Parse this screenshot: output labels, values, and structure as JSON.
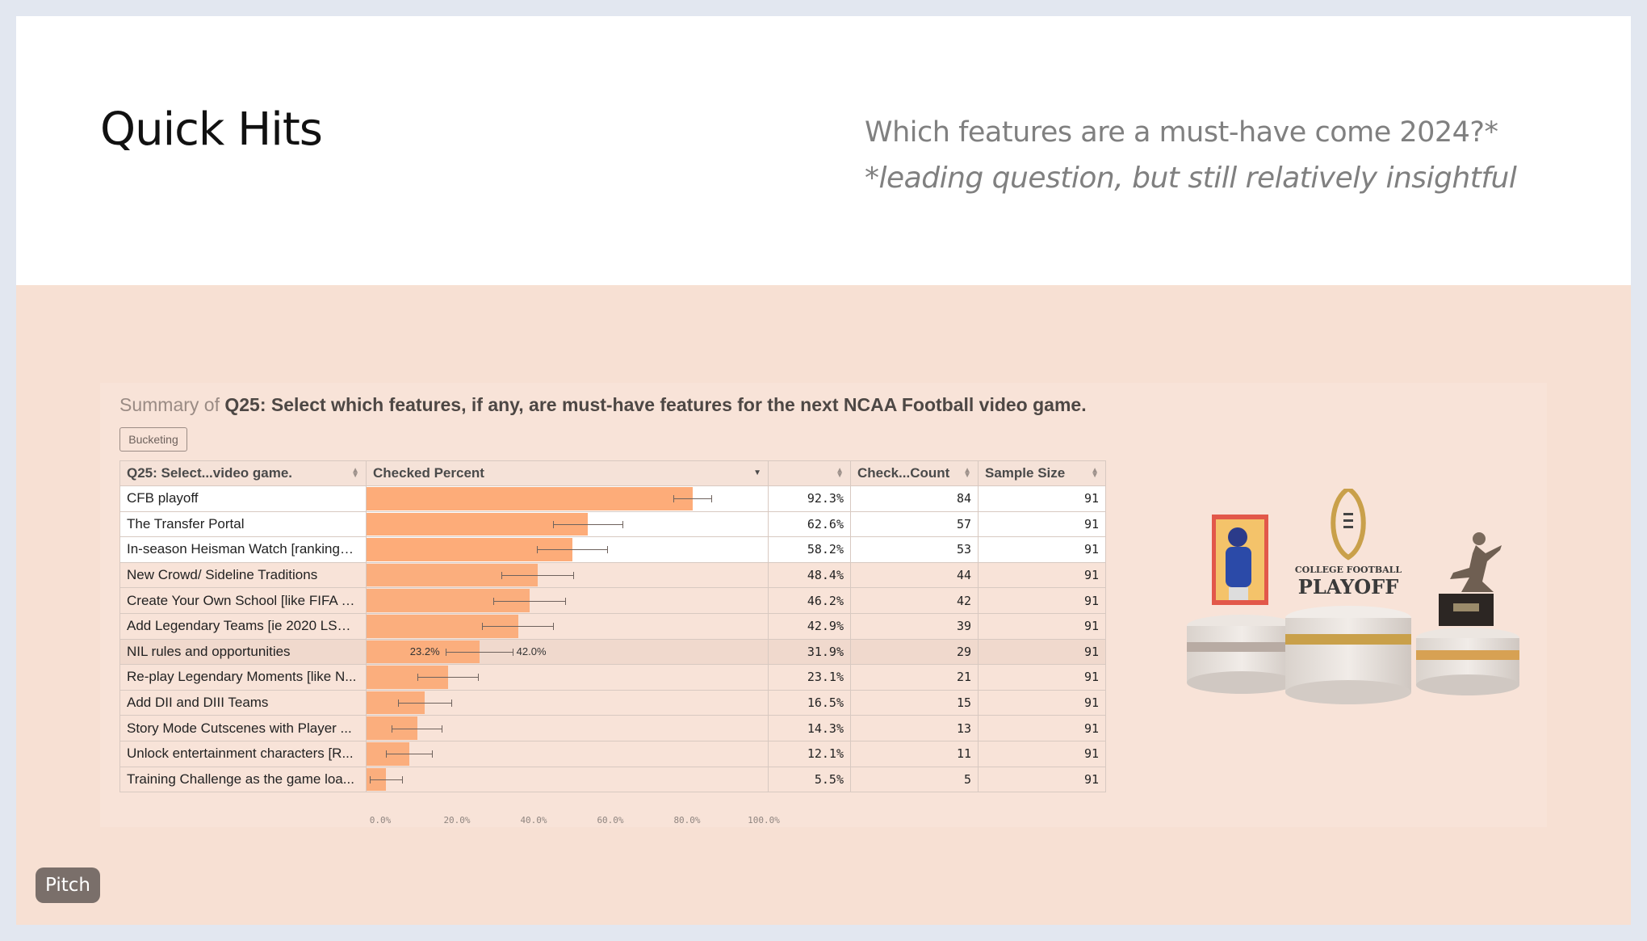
{
  "slide": {
    "title": "Quick Hits",
    "subtitle": "Which features are a must-have come 2024?*",
    "subnote": "*leading question, but still relatively insightful"
  },
  "panel": {
    "summary_prefix": "Summary of",
    "question": "Q25: Select which features, if any, are must-have features for the next NCAA Football video game.",
    "bucketing_label": "Bucketing",
    "columns": [
      "Q25: Select...video game.",
      "Checked Percent",
      "",
      "Check...Count",
      "Sample Size"
    ],
    "rows": [
      {
        "label": "CFB playoff",
        "pct": 92.3,
        "pct_text": "92.3%",
        "count": "84",
        "sample": "91"
      },
      {
        "label": "The Transfer Portal",
        "pct": 62.6,
        "pct_text": "62.6%",
        "count": "57",
        "sample": "91"
      },
      {
        "label": "In-season Heisman Watch [rankings,...",
        "pct": 58.2,
        "pct_text": "58.2%",
        "count": "53",
        "sample": "91"
      },
      {
        "label": "New Crowd/ Sideline Traditions",
        "pct": 48.4,
        "pct_text": "48.4%",
        "count": "44",
        "sample": "91"
      },
      {
        "label": "Create Your Own School [like FIFA U...",
        "pct": 46.2,
        "pct_text": "46.2%",
        "count": "42",
        "sample": "91"
      },
      {
        "label": "Add Legendary Teams [ie 2020 LSU ...",
        "pct": 42.9,
        "pct_text": "42.9%",
        "count": "39",
        "sample": "91"
      },
      {
        "label": "NIL rules and opportunities",
        "pct": 31.9,
        "pct_text": "31.9%",
        "count": "29",
        "sample": "91",
        "ci_low": "23.2%",
        "ci_high": "42.0%"
      },
      {
        "label": "Re-play Legendary Moments [like N...",
        "pct": 23.1,
        "pct_text": "23.1%",
        "count": "21",
        "sample": "91"
      },
      {
        "label": "Add DII and DIII Teams",
        "pct": 16.5,
        "pct_text": "16.5%",
        "count": "15",
        "sample": "91"
      },
      {
        "label": "Story Mode Cutscenes with Player ...",
        "pct": 14.3,
        "pct_text": "14.3%",
        "count": "13",
        "sample": "91"
      },
      {
        "label": "Unlock entertainment characters [R...",
        "pct": 12.1,
        "pct_text": "12.1%",
        "count": "11",
        "sample": "91"
      },
      {
        "label": "Training Challenge as the game loa...",
        "pct": 5.5,
        "pct_text": "5.5%",
        "count": "5",
        "sample": "91"
      }
    ],
    "axis_ticks": [
      "0.0%",
      "20.0%",
      "40.0%",
      "60.0%",
      "80.0%",
      "100.0%"
    ],
    "art_text_1": "COLLEGE FOOTBALL",
    "art_text_2": "PLAYOFF"
  },
  "badge": {
    "label": "Pitch"
  },
  "colors": {
    "bar": "#fbae7d",
    "band": "#f7e0d3",
    "accent_gold": "#c9a04a"
  }
}
